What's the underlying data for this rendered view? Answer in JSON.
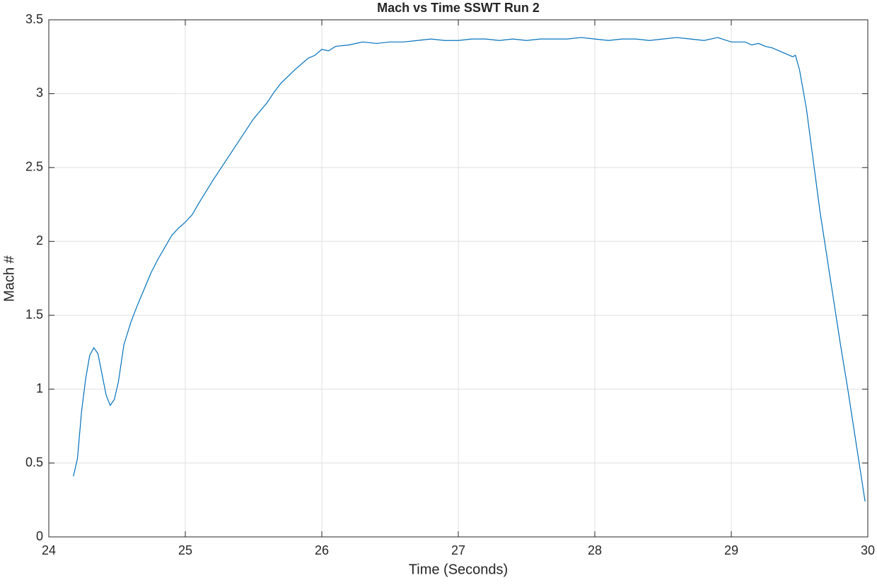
{
  "chart_data": {
    "type": "line",
    "title": "Mach vs Time SSWT Run 2",
    "x_label": "Time (Seconds)",
    "y_label": "Mach #",
    "xlim": [
      24,
      30
    ],
    "ylim": [
      0,
      3.5
    ],
    "xticks": [
      24,
      25,
      26,
      27,
      28,
      29,
      30
    ],
    "yticks": [
      0,
      0.5,
      1,
      1.5,
      2,
      2.5,
      3,
      3.5
    ],
    "grid": true,
    "x": [
      24.18,
      24.21,
      24.24,
      24.27,
      24.3,
      24.33,
      24.36,
      24.39,
      24.42,
      24.45,
      24.48,
      24.51,
      24.55,
      24.6,
      24.65,
      24.7,
      24.75,
      24.8,
      24.85,
      24.9,
      24.95,
      25.0,
      25.05,
      25.1,
      25.2,
      25.3,
      25.4,
      25.5,
      25.6,
      25.65,
      25.7,
      25.8,
      25.9,
      25.95,
      26.0,
      26.05,
      26.1,
      26.2,
      26.3,
      26.4,
      26.5,
      26.6,
      26.7,
      26.8,
      26.9,
      27.0,
      27.1,
      27.2,
      27.3,
      27.4,
      27.5,
      27.6,
      27.7,
      27.8,
      27.9,
      28.0,
      28.1,
      28.2,
      28.3,
      28.4,
      28.5,
      28.6,
      28.7,
      28.8,
      28.9,
      29.0,
      29.1,
      29.15,
      29.2,
      29.25,
      29.3,
      29.4,
      29.45,
      29.47,
      29.5,
      29.55,
      29.6,
      29.65,
      29.7,
      29.75,
      29.8,
      29.85,
      29.9,
      29.95,
      29.98
    ],
    "series": [
      {
        "name": "Mach",
        "color": "#0072bd",
        "values": [
          0.41,
          0.53,
          0.85,
          1.07,
          1.23,
          1.28,
          1.24,
          1.1,
          0.96,
          0.89,
          0.93,
          1.05,
          1.3,
          1.45,
          1.57,
          1.68,
          1.79,
          1.88,
          1.96,
          2.04,
          2.09,
          2.13,
          2.18,
          2.26,
          2.41,
          2.55,
          2.69,
          2.83,
          2.94,
          3.01,
          3.07,
          3.16,
          3.24,
          3.26,
          3.3,
          3.29,
          3.32,
          3.33,
          3.35,
          3.34,
          3.35,
          3.35,
          3.36,
          3.37,
          3.36,
          3.36,
          3.37,
          3.37,
          3.36,
          3.37,
          3.36,
          3.37,
          3.37,
          3.37,
          3.38,
          3.37,
          3.36,
          3.37,
          3.37,
          3.36,
          3.37,
          3.38,
          3.37,
          3.36,
          3.38,
          3.35,
          3.35,
          3.33,
          3.34,
          3.32,
          3.31,
          3.27,
          3.25,
          3.26,
          3.16,
          2.9,
          2.55,
          2.2,
          1.9,
          1.6,
          1.3,
          1.02,
          0.72,
          0.42,
          0.24
        ]
      }
    ]
  }
}
